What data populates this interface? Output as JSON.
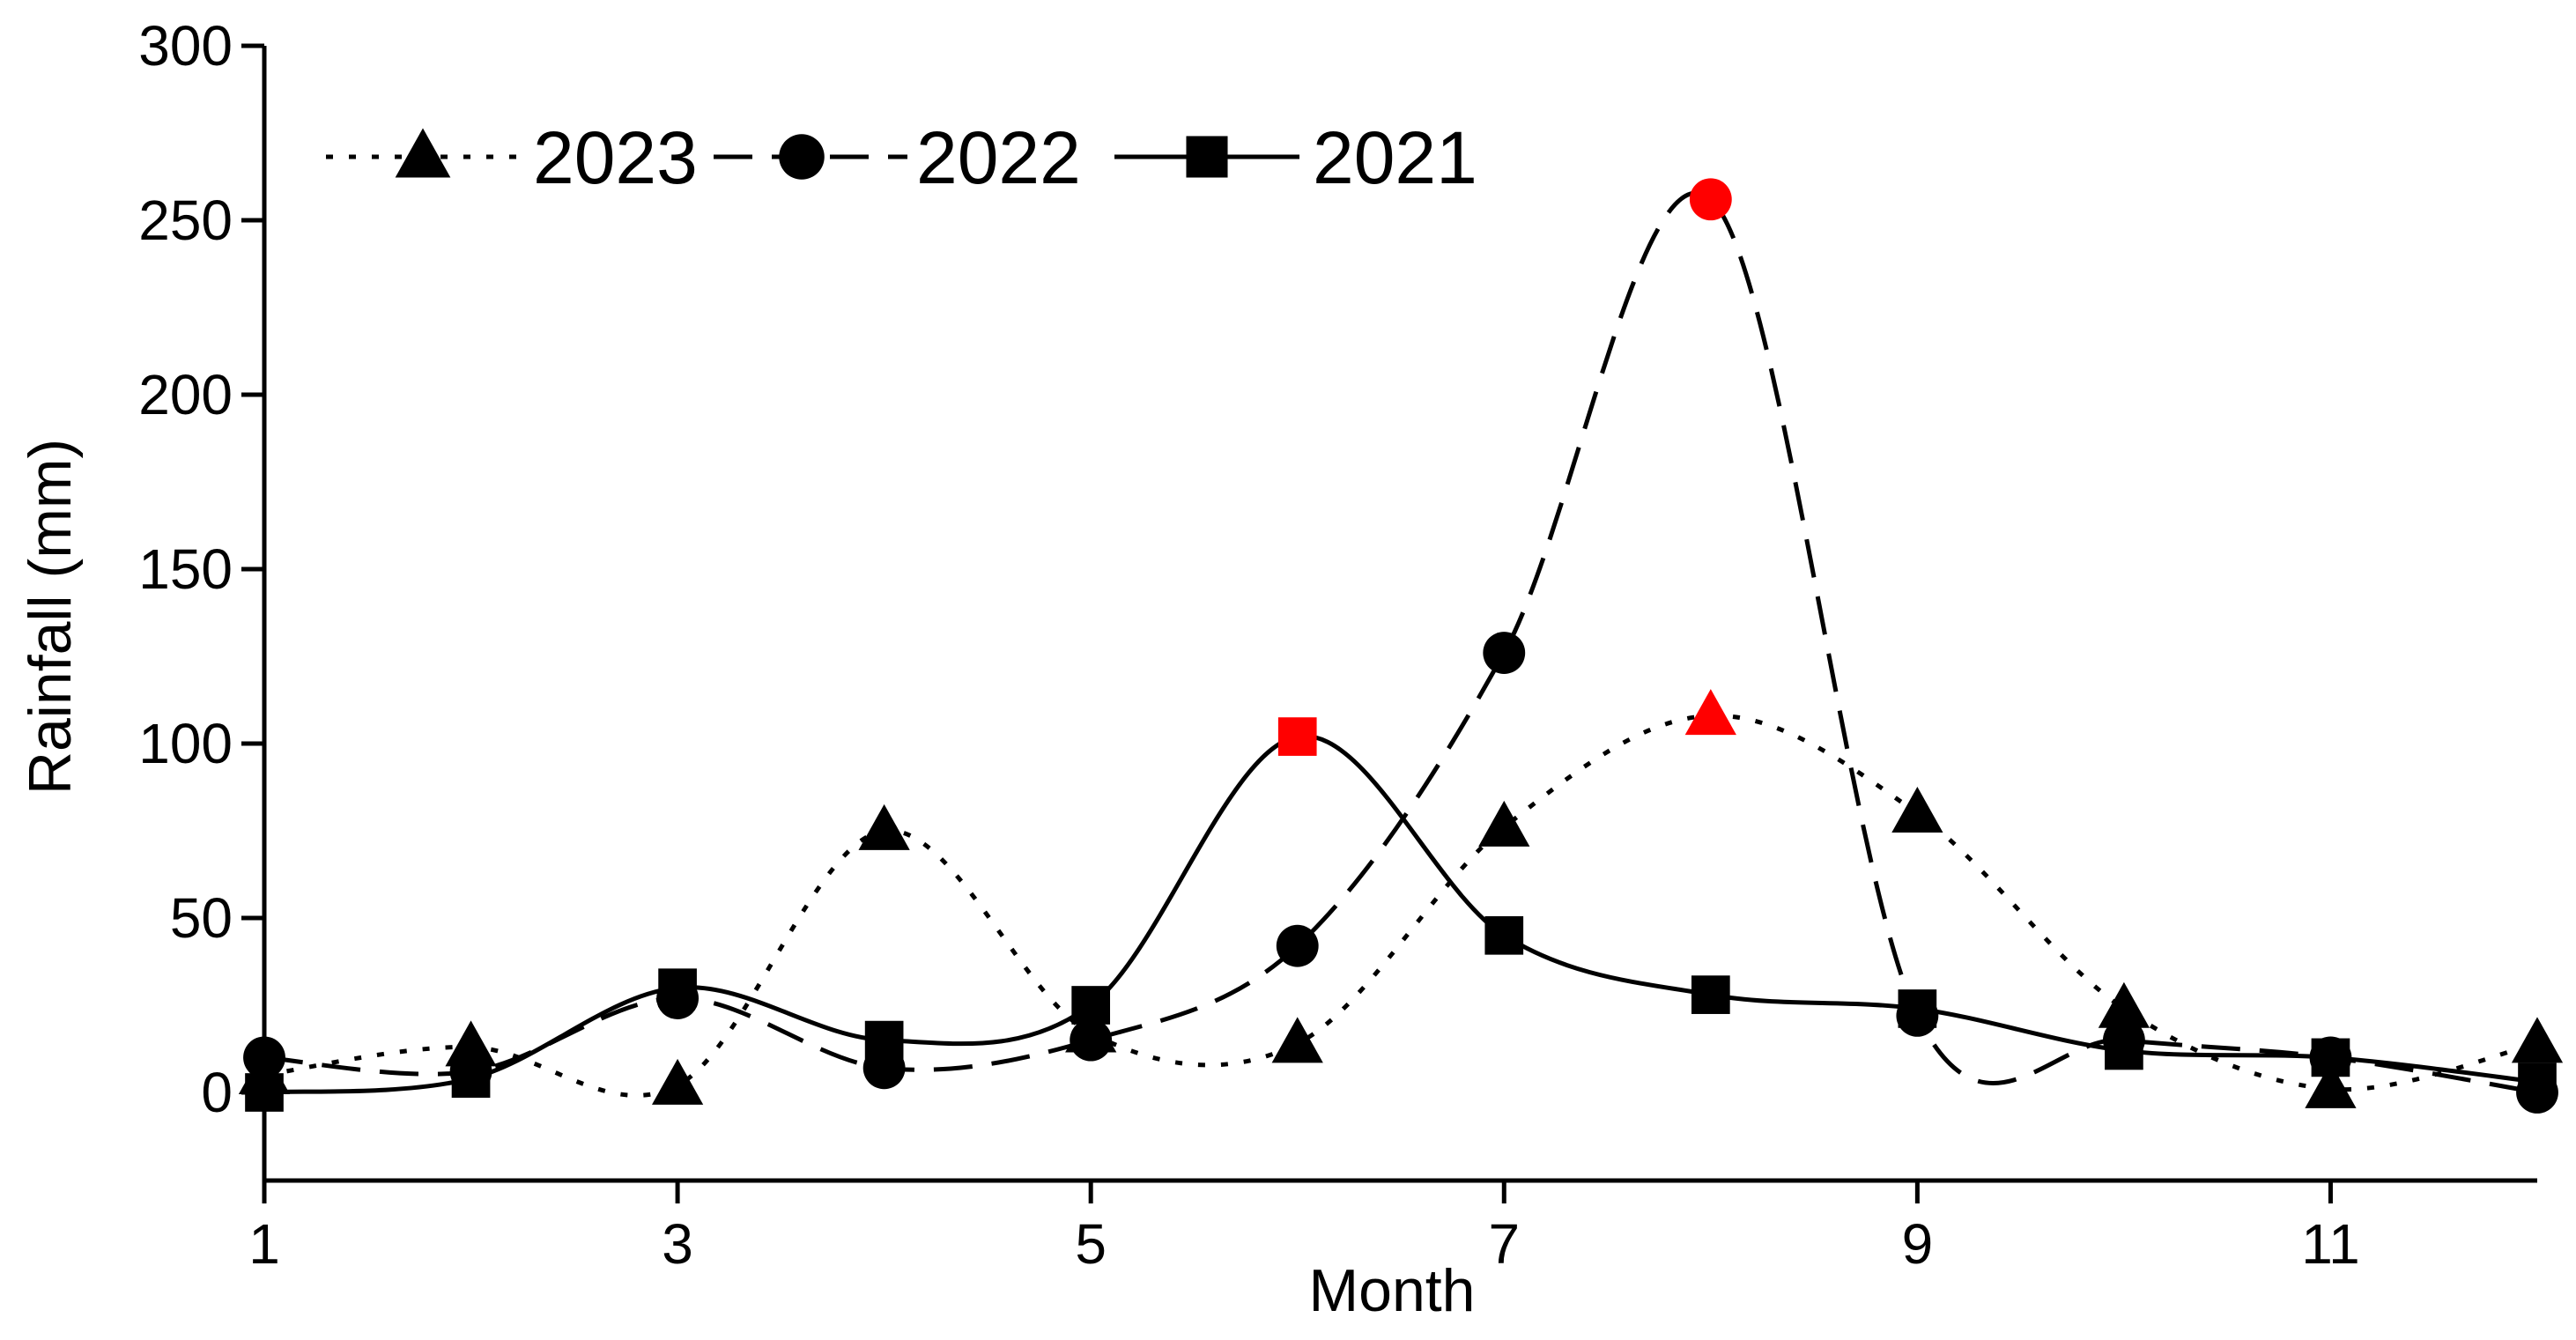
{
  "chart_data": {
    "type": "line",
    "xlabel": "Month",
    "ylabel": "Rainfall (mm)",
    "xlim": [
      1,
      12
    ],
    "ylim": [
      -25,
      300
    ],
    "x_ticks": [
      1,
      3,
      5,
      7,
      9,
      11
    ],
    "x_tick_labels": [
      "1",
      "3",
      "5",
      "7",
      "9",
      "11"
    ],
    "y_ticks": [
      0,
      50,
      100,
      150,
      200,
      250,
      300
    ],
    "y_tick_labels": [
      "0",
      "50",
      "100",
      "150",
      "200",
      "250",
      "300"
    ],
    "grid": false,
    "legend_position": "top-left",
    "highlight_color": "#ff0000",
    "x": [
      1,
      2,
      3,
      4,
      5,
      6,
      7,
      8,
      9,
      10,
      11,
      12
    ],
    "series": [
      {
        "name": "2023",
        "marker": "triangle",
        "line_style": "dotted",
        "color": "#000000",
        "values": [
          5,
          13,
          2,
          75,
          17,
          14,
          76,
          108,
          80,
          24,
          1,
          14
        ],
        "highlight_index": 7
      },
      {
        "name": "2022",
        "marker": "circle",
        "line_style": "dashed",
        "color": "#000000",
        "values": [
          10,
          6,
          27,
          7,
          15,
          42,
          126,
          256,
          22,
          15,
          10,
          0
        ],
        "highlight_index": 7
      },
      {
        "name": "2021",
        "marker": "square",
        "line_style": "solid",
        "color": "#000000",
        "values": [
          0,
          4,
          30,
          15,
          25,
          102,
          45,
          28,
          24,
          12,
          10,
          3
        ],
        "highlight_index": 5
      }
    ]
  }
}
